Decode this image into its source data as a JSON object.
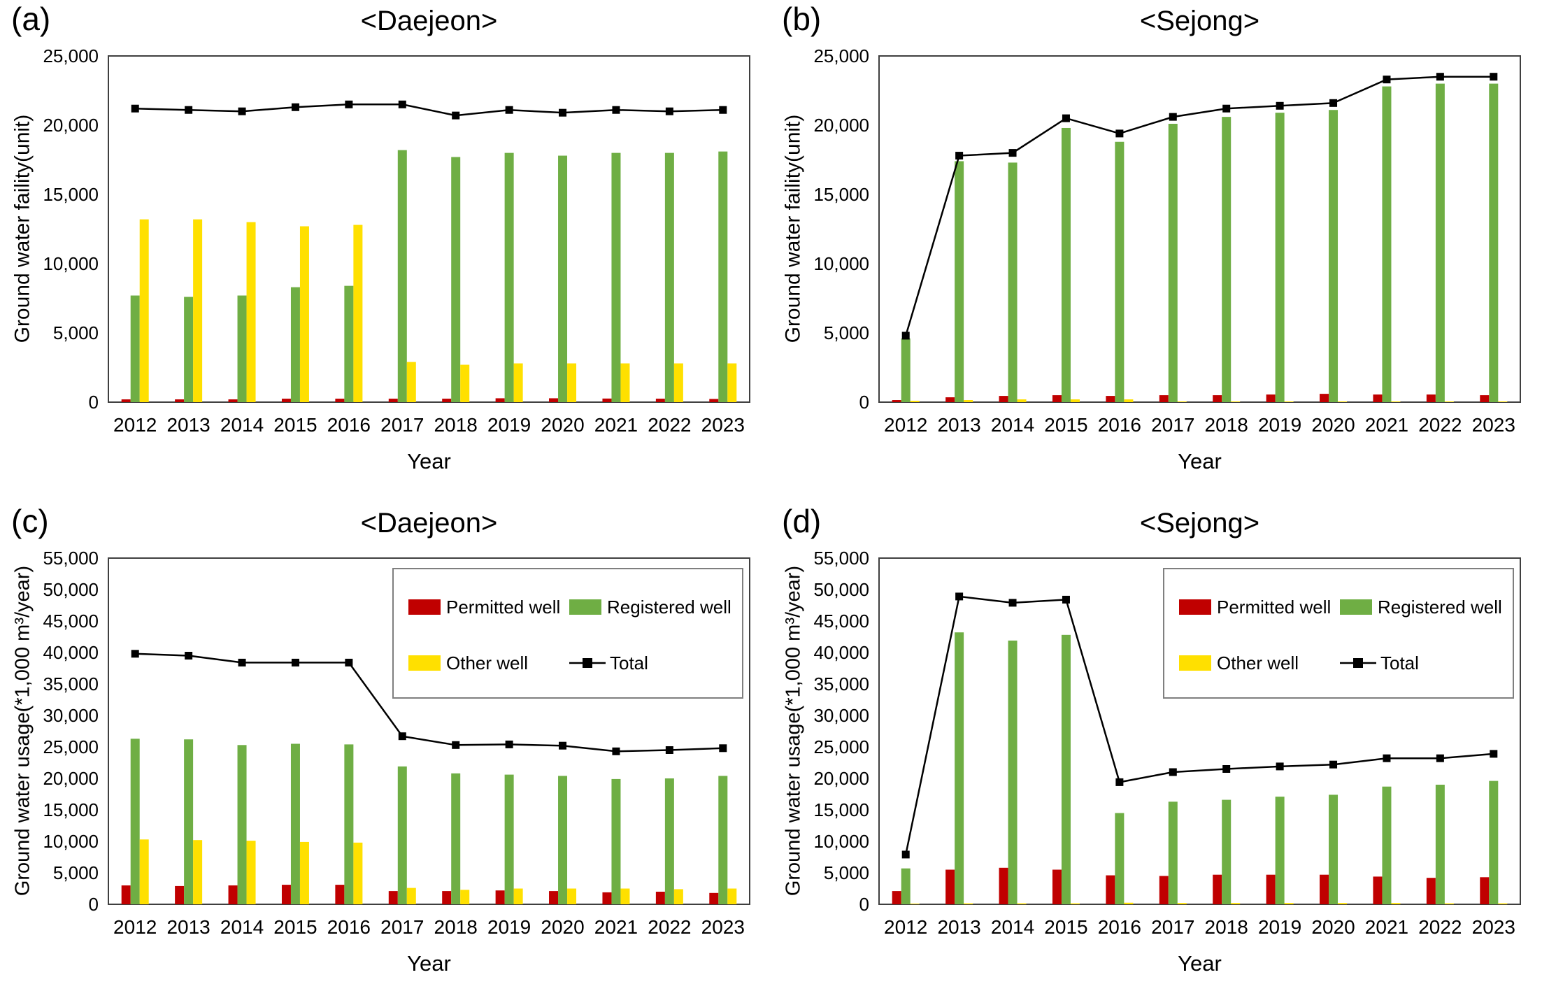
{
  "figure": {
    "background": "#ffffff"
  },
  "colors": {
    "permitted": "#C00000",
    "registered": "#6FAE44",
    "other": "#FFE000",
    "total": "#000000",
    "plot_border": "#3F3F3F",
    "legend_border": "#7F7F7F"
  },
  "chart_data": [
    {
      "type": "bar",
      "panel_label": "(a)",
      "title": "<Daejeon>",
      "xlabel": "Year",
      "ylabel": "Ground water faility(unit)",
      "ylim": [
        0,
        25000
      ],
      "ytick_step": 5000,
      "grid": false,
      "legend_visible": false,
      "legend_position": "top-right-inside",
      "categories": [
        "2012",
        "2013",
        "2014",
        "2015",
        "2016",
        "2017",
        "2018",
        "2019",
        "2020",
        "2021",
        "2022",
        "2023"
      ],
      "series": [
        {
          "name": "Permitted well",
          "type": "bar",
          "color": "#C00000",
          "values": [
            200,
            200,
            200,
            250,
            250,
            250,
            250,
            280,
            280,
            260,
            250,
            230
          ]
        },
        {
          "name": "Registered well",
          "type": "bar",
          "color": "#6FAE44",
          "values": [
            7700,
            7600,
            7700,
            8300,
            8400,
            18200,
            17700,
            18000,
            17800,
            18000,
            18000,
            18100
          ]
        },
        {
          "name": "Other well",
          "type": "bar",
          "color": "#FFE000",
          "values": [
            13200,
            13200,
            13000,
            12700,
            12800,
            2900,
            2700,
            2800,
            2800,
            2800,
            2800,
            2800
          ]
        },
        {
          "name": "Total",
          "type": "line",
          "color": "#000000",
          "marker": "square",
          "values": [
            21200,
            21100,
            21000,
            21300,
            21500,
            21500,
            20700,
            21100,
            20900,
            21100,
            21000,
            21100
          ]
        }
      ]
    },
    {
      "type": "bar",
      "panel_label": "(b)",
      "title": "<Sejong>",
      "xlabel": "Year",
      "ylabel": "Ground water faility(unit)",
      "ylim": [
        0,
        25000
      ],
      "ytick_step": 5000,
      "grid": false,
      "legend_visible": false,
      "legend_position": "top-right-inside",
      "categories": [
        "2012",
        "2013",
        "2014",
        "2015",
        "2016",
        "2017",
        "2018",
        "2019",
        "2020",
        "2021",
        "2022",
        "2023"
      ],
      "series": [
        {
          "name": "Permitted well",
          "type": "bar",
          "color": "#C00000",
          "values": [
            150,
            350,
            450,
            500,
            450,
            500,
            500,
            550,
            600,
            550,
            550,
            500
          ]
        },
        {
          "name": "Registered well",
          "type": "bar",
          "color": "#6FAE44",
          "values": [
            4600,
            17400,
            17300,
            19800,
            18800,
            20100,
            20600,
            20900,
            21100,
            22800,
            23000,
            23000
          ]
        },
        {
          "name": "Other well",
          "type": "bar",
          "color": "#FFE000",
          "values": [
            100,
            150,
            200,
            200,
            200,
            50,
            50,
            50,
            50,
            50,
            50,
            50
          ]
        },
        {
          "name": "Total",
          "type": "line",
          "color": "#000000",
          "marker": "square",
          "values": [
            4800,
            17800,
            18000,
            20500,
            19400,
            20600,
            21200,
            21400,
            21600,
            23300,
            23500,
            23500
          ]
        }
      ]
    },
    {
      "type": "bar",
      "panel_label": "(c)",
      "title": "<Daejeon>",
      "xlabel": "Year",
      "ylabel": "Ground water usage(*1,000 m³/year)",
      "ylim": [
        0,
        55000
      ],
      "ytick_step": 5000,
      "grid": false,
      "legend_visible": true,
      "legend_position": "top-right-inside",
      "categories": [
        "2012",
        "2013",
        "2014",
        "2015",
        "2016",
        "2017",
        "2018",
        "2019",
        "2020",
        "2021",
        "2022",
        "2023"
      ],
      "series": [
        {
          "name": "Permitted well",
          "type": "bar",
          "color": "#C00000",
          "values": [
            3000,
            2900,
            3000,
            3100,
            3100,
            2100,
            2100,
            2200,
            2100,
            1900,
            2000,
            1800
          ]
        },
        {
          "name": "Registered well",
          "type": "bar",
          "color": "#6FAE44",
          "values": [
            26300,
            26200,
            25300,
            25500,
            25400,
            21900,
            20800,
            20600,
            20400,
            19900,
            20000,
            20400
          ]
        },
        {
          "name": "Other well",
          "type": "bar",
          "color": "#FFE000",
          "values": [
            10300,
            10200,
            10100,
            9900,
            9800,
            2600,
            2300,
            2500,
            2500,
            2500,
            2400,
            2500
          ]
        },
        {
          "name": "Total",
          "type": "line",
          "color": "#000000",
          "marker": "square",
          "values": [
            39800,
            39500,
            38400,
            38400,
            38400,
            26700,
            25300,
            25400,
            25200,
            24300,
            24500,
            24800
          ]
        }
      ]
    },
    {
      "type": "bar",
      "panel_label": "(d)",
      "title": "<Sejong>",
      "xlabel": "Year",
      "ylabel": "Ground water usage(*1,000 m³/year)",
      "ylim": [
        0,
        55000
      ],
      "ytick_step": 5000,
      "grid": false,
      "legend_visible": true,
      "legend_position": "top-right-inside",
      "categories": [
        "2012",
        "2013",
        "2014",
        "2015",
        "2016",
        "2017",
        "2018",
        "2019",
        "2020",
        "2021",
        "2022",
        "2023"
      ],
      "series": [
        {
          "name": "Permitted well",
          "type": "bar",
          "color": "#C00000",
          "values": [
            2100,
            5500,
            5800,
            5500,
            4600,
            4500,
            4700,
            4700,
            4700,
            4400,
            4200,
            4300
          ]
        },
        {
          "name": "Registered well",
          "type": "bar",
          "color": "#6FAE44",
          "values": [
            5700,
            43200,
            41900,
            42800,
            14500,
            16300,
            16600,
            17100,
            17400,
            18700,
            19000,
            19600
          ]
        },
        {
          "name": "Other well",
          "type": "bar",
          "color": "#FFE000",
          "values": [
            100,
            150,
            150,
            150,
            250,
            200,
            200,
            200,
            200,
            200,
            150,
            150
          ]
        },
        {
          "name": "Total",
          "type": "line",
          "color": "#000000",
          "marker": "square",
          "values": [
            7900,
            48900,
            47900,
            48400,
            19400,
            21000,
            21500,
            21900,
            22200,
            23200,
            23200,
            23900
          ]
        }
      ]
    }
  ]
}
